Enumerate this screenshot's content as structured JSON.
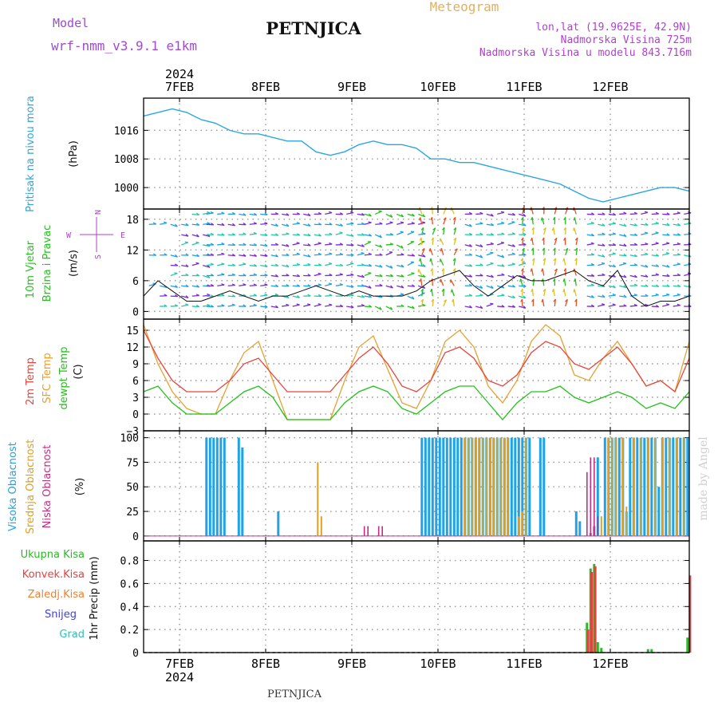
{
  "header": {
    "model_label": "Model",
    "model_name": "wrf-nmm_v3.9.1 e1km",
    "station": "PETNJICA",
    "meteogram_label": "Meteogram",
    "lonlat": "lon,lat (19.9625E, 42.9N)",
    "elevation": "Nadmorska Visina 725m",
    "model_elevation": "Nadmorska Visina u modelu 843.716m"
  },
  "footer": {
    "station": "PETNJICA",
    "watermark": "made by Angel"
  },
  "colors": {
    "pressure": "#2aa7e0",
    "temp2m": "#e8453c",
    "sfc_temp": "#e8a030",
    "dewpoint": "#22c21a",
    "high_cloud": "#1fa3e6",
    "mid_cloud": "#e0a020",
    "low_cloud": "#c03080",
    "total_precip": "#2fb52a",
    "conv_precip": "#e84040",
    "frz_precip": "#f08030",
    "snow": "#4040e0",
    "graupel": "#30c0b0",
    "model_color": "#a04ad0",
    "meteogram_color": "#e0b060",
    "info_color": "#b040d0"
  },
  "chart_data": [
    {
      "type": "line",
      "panel": "pressure",
      "ylabel_left": "Pritisak na nivou mora",
      "ylabel": "(hPa)",
      "yticks": [
        1000,
        1008,
        1016
      ],
      "ylim": [
        994,
        1025
      ],
      "x_range_hours": [
        -10,
        142
      ],
      "top_axis": {
        "labels": [
          "7FEB",
          "8FEB",
          "9FEB",
          "10FEB",
          "11FEB",
          "12FEB"
        ],
        "year": "2024"
      },
      "x": [
        -10,
        -6,
        -2,
        2,
        6,
        10,
        14,
        18,
        22,
        26,
        30,
        34,
        38,
        42,
        46,
        50,
        54,
        58,
        62,
        66,
        70,
        74,
        78,
        82,
        86,
        90,
        94,
        98,
        102,
        106,
        110,
        114,
        118,
        122,
        126,
        130,
        134,
        138,
        142
      ],
      "series": [
        {
          "values": [
            1020,
            1021,
            1022,
            1021,
            1019,
            1018,
            1016,
            1015,
            1015,
            1014,
            1013,
            1013,
            1010,
            1009,
            1010,
            1012,
            1013,
            1012,
            1012,
            1011,
            1008,
            1008,
            1007,
            1007,
            1006,
            1005,
            1004,
            1003,
            1002,
            1001,
            999,
            997,
            996,
            997,
            998,
            999,
            1000,
            1000,
            999
          ]
        }
      ],
      "grid": true
    },
    {
      "type": "line",
      "panel": "wind",
      "ylabel_left": [
        "10m Vjetar",
        "Brzina i Pravac"
      ],
      "ylabel": "(m/s)",
      "direction_key": [
        "W",
        "E",
        "N",
        "S"
      ],
      "yticks": [
        0,
        6,
        12,
        18
      ],
      "ylim": [
        -1.5,
        20
      ],
      "x": [
        -10,
        -6,
        -2,
        2,
        6,
        10,
        14,
        18,
        22,
        26,
        30,
        34,
        38,
        42,
        46,
        50,
        54,
        58,
        62,
        66,
        70,
        74,
        78,
        82,
        86,
        90,
        94,
        98,
        102,
        106,
        110,
        114,
        118,
        122,
        126,
        130,
        134,
        138,
        142
      ],
      "series": [
        {
          "name": "wind speed",
          "values": [
            3,
            6,
            4,
            2,
            2,
            3,
            4,
            3,
            2,
            3,
            3,
            4,
            5,
            4,
            3,
            4,
            3,
            3,
            3,
            4,
            6,
            7,
            8,
            5,
            3,
            5,
            7,
            6,
            6,
            7,
            8,
            6,
            5,
            8,
            3,
            1,
            2,
            2,
            3
          ]
        }
      ],
      "grid": true
    },
    {
      "type": "line",
      "panel": "temperature",
      "ylabel_left": [
        "2m Temp",
        "SFC Temp",
        "dewpt Temp"
      ],
      "ylabel": "(C)",
      "yticks": [
        -3,
        0,
        3,
        6,
        9,
        12,
        15
      ],
      "ylim": [
        -3,
        17
      ],
      "x": [
        -10,
        -6,
        -2,
        2,
        6,
        10,
        14,
        18,
        22,
        26,
        30,
        34,
        38,
        42,
        46,
        50,
        54,
        58,
        62,
        66,
        70,
        74,
        78,
        82,
        86,
        90,
        94,
        98,
        102,
        106,
        110,
        114,
        118,
        122,
        126,
        130,
        134,
        138,
        142
      ],
      "series": [
        {
          "name": "2m Temp",
          "values": [
            15,
            10,
            6,
            4,
            4,
            4,
            6,
            9,
            10,
            7,
            4,
            4,
            4,
            4,
            7,
            10,
            12,
            9,
            5,
            4,
            6,
            11,
            12,
            10,
            6,
            5,
            7,
            11,
            13,
            12,
            9,
            8,
            10,
            12,
            9,
            5,
            6,
            4,
            10
          ]
        },
        {
          "name": "SFC Temp",
          "values": [
            16,
            9,
            4,
            1,
            0,
            0,
            6,
            11,
            13,
            6,
            -1,
            -1,
            -1,
            -1,
            6,
            12,
            14,
            8,
            2,
            1,
            6,
            13,
            15,
            12,
            5,
            2,
            6,
            13,
            16,
            14,
            7,
            6,
            10,
            13,
            9,
            5,
            6,
            4,
            13
          ]
        },
        {
          "name": "dewpt Temp",
          "values": [
            4,
            5,
            2,
            0,
            0,
            0,
            2,
            4,
            5,
            3,
            -1,
            -1,
            -1,
            -1,
            2,
            4,
            5,
            4,
            1,
            0,
            2,
            4,
            5,
            5,
            2,
            -1,
            2,
            4,
            4,
            5,
            3,
            2,
            3,
            4,
            3,
            1,
            2,
            1,
            4
          ]
        }
      ],
      "grid": true
    },
    {
      "type": "bar",
      "panel": "cloud",
      "ylabel_left": [
        "Visoka Oblacnost",
        "Srednja Oblacnost",
        "Niska Oblacnost"
      ],
      "ylabel": "(%)",
      "yticks": [
        0,
        25,
        50,
        75,
        100
      ],
      "ylim": [
        -5,
        107
      ],
      "series": [
        {
          "name": "Visoka Oblacnost",
          "x": [
            7.5,
            8.5,
            9.5,
            10.5,
            11.5,
            12.5,
            16.5,
            17.5,
            27.5,
            67.5,
            68.5,
            69.5,
            70.5,
            71.5,
            72.5,
            73.5,
            74.5,
            75.5,
            76.5,
            77.5,
            78.5,
            79.5,
            80.5,
            81.5,
            82.5,
            83.5,
            84.5,
            85.5,
            86.5,
            87.5,
            88.5,
            89.5,
            90.5,
            91.5,
            92.5,
            93.5,
            94.5,
            95.5,
            96.5,
            97.5,
            100.5,
            101.5,
            110.5,
            111.5,
            114.5,
            115.5,
            116.5,
            118.5,
            119.5,
            120.5,
            121.5,
            122.5,
            123.5,
            124.5,
            125.5,
            126.5,
            127.5,
            128.5,
            129.5,
            130.5,
            131.5,
            132.5,
            133.5,
            134.5,
            135.5,
            136.5,
            137.5,
            138.5,
            139.5,
            140.5,
            141.5
          ],
          "values": [
            100,
            100,
            100,
            100,
            100,
            100,
            100,
            90,
            25,
            100,
            100,
            100,
            100,
            100,
            100,
            100,
            100,
            100,
            100,
            100,
            100,
            100,
            100,
            100,
            100,
            100,
            100,
            100,
            100,
            100,
            100,
            100,
            100,
            100,
            100,
            100,
            100,
            100,
            100,
            100,
            100,
            100,
            25,
            15,
            3,
            10,
            80,
            100,
            100,
            100,
            100,
            100,
            100,
            25,
            100,
            100,
            100,
            100,
            100,
            100,
            100,
            100,
            50,
            100,
            100,
            100,
            100,
            100,
            100,
            100,
            100
          ]
        },
        {
          "name": "Srednja Oblacnost",
          "x": [
            38.5,
            39.5,
            79.5,
            80.5,
            81.5,
            82.5,
            83.5,
            84.5,
            85.5,
            86.5,
            87.5,
            88.5,
            89.5,
            90.5,
            91.5,
            94.5,
            95.5,
            96.5,
            117.5,
            119.5,
            120.5,
            121.5,
            123.5,
            124.5,
            126.5,
            128.5,
            130.5,
            132.5,
            134.5,
            136.5,
            138.5,
            140.5
          ],
          "values": [
            75,
            20,
            100,
            100,
            100,
            100,
            100,
            100,
            100,
            100,
            100,
            100,
            100,
            100,
            100,
            20,
            25,
            100,
            20,
            100,
            100,
            100,
            100,
            30,
            100,
            100,
            100,
            100,
            100,
            100,
            100,
            100
          ]
        },
        {
          "name": "Niska Oblacnost",
          "x": [
            51.5,
            52.5,
            55.5,
            56.5,
            113.5,
            114.5,
            115.5,
            116.5
          ],
          "values": [
            10,
            10,
            10,
            10,
            65,
            80,
            80,
            20
          ]
        }
      ],
      "grid": true
    },
    {
      "type": "bar",
      "panel": "precipitation",
      "ylabel_left": [
        "Ukupna Kisa",
        "Konvek.Kisa",
        "Zaledj.Kisa",
        "Snijeg",
        "Grad"
      ],
      "ylabel": "1hr Precip (mm)",
      "yticks": [
        0,
        0.2,
        0.4,
        0.6,
        0.8
      ],
      "ylim": [
        0,
        0.97
      ],
      "bottom_axis": {
        "labels": [
          "7FEB",
          "8FEB",
          "9FEB",
          "10FEB",
          "11FEB",
          "12FEB"
        ],
        "year": "2024"
      },
      "series": [
        {
          "name": "Ukupna Kisa",
          "x": [
            113.5,
            114.5,
            115.5,
            116.5,
            117.5,
            130.5,
            131.5,
            141.5
          ],
          "values": [
            0.26,
            0.73,
            0.77,
            0.09,
            0.04,
            0.03,
            0.03,
            0.13
          ]
        },
        {
          "name": "Konvek.Kisa",
          "x": [
            113.8,
            114.8,
            115.8,
            142.2
          ],
          "values": [
            0.2,
            0.7,
            0.75,
            0.67
          ]
        }
      ],
      "grid": true
    }
  ]
}
